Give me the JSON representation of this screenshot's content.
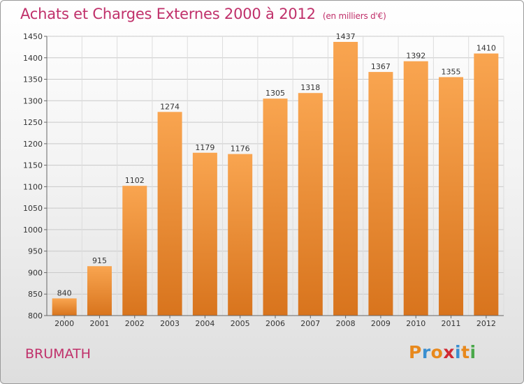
{
  "header": {
    "title": "Achats et Charges Externes 2000 à 2012",
    "subtitle": "(en milliers d'€)"
  },
  "footer": {
    "city": "BRUMATH",
    "logo": [
      "P",
      "r",
      "o",
      "x",
      "i",
      "t",
      "i"
    ]
  },
  "colors": {
    "title": "#c0306a",
    "bar_top": "#f9a550",
    "bar_bottom": "#d8741d",
    "logo": [
      "#e8891d",
      "#3a8fd0",
      "#e8891d",
      "#d02a33",
      "#3a8fd0",
      "#e8891d",
      "#4aa84a"
    ]
  },
  "chart_data": {
    "type": "bar",
    "title": "Achats et Charges Externes 2000 à 2012",
    "categories": [
      "2000",
      "2001",
      "2002",
      "2003",
      "2004",
      "2005",
      "2006",
      "2007",
      "2008",
      "2009",
      "2010",
      "2011",
      "2012"
    ],
    "values": [
      840,
      915,
      1102,
      1274,
      1179,
      1176,
      1305,
      1318,
      1437,
      1367,
      1392,
      1355,
      1410
    ],
    "ylim": [
      800,
      1450
    ],
    "yticks": [
      800,
      850,
      900,
      950,
      1000,
      1050,
      1100,
      1150,
      1200,
      1250,
      1300,
      1350,
      1400,
      1450
    ],
    "grid": true,
    "xlabel": "",
    "ylabel": ""
  }
}
